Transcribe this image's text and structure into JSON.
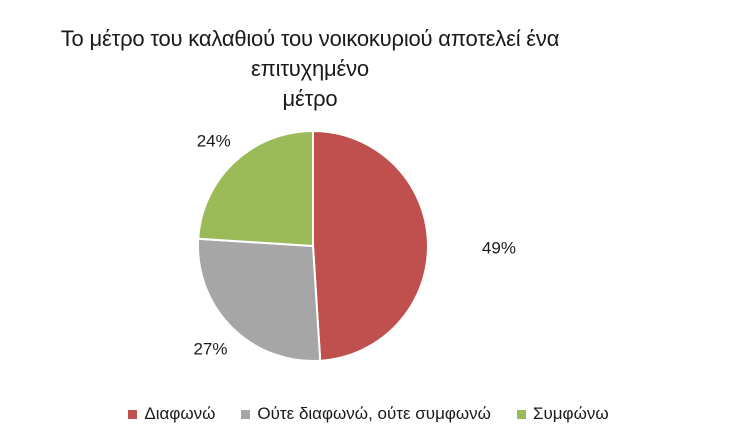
{
  "chart_data": {
    "type": "pie",
    "title_lines": [
      "Το μέτρο του καλαθιού του νοικοκυριού αποτελεί ένα επιτυχημένο",
      "μέτρο"
    ],
    "slices": [
      {
        "label": "Διαφωνώ",
        "value": 49,
        "value_label": "49%",
        "color": "#C0504D"
      },
      {
        "label": "Ούτε διαφωνώ, ούτε συμφωνώ",
        "value": 27,
        "value_label": "27%",
        "color": "#A6A6A6"
      },
      {
        "label": "Συμφώνω",
        "value": 24,
        "value_label": "24%",
        "color": "#9BBB59"
      }
    ],
    "legend_position": "bottom"
  }
}
